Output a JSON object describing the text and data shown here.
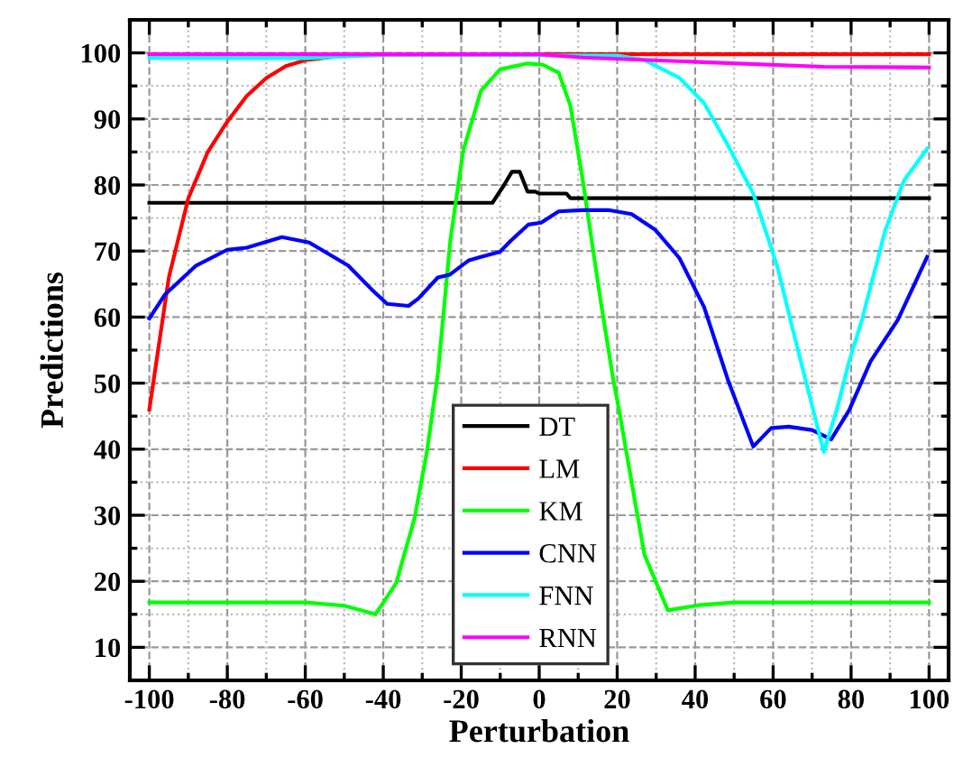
{
  "chart_data": {
    "type": "line",
    "xlabel": "Perturbation",
    "ylabel": "Predictions",
    "xlim": [
      -105,
      105
    ],
    "ylim": [
      5,
      105
    ],
    "xticks": [
      -100,
      -80,
      -60,
      -40,
      -20,
      0,
      20,
      40,
      60,
      80,
      100
    ],
    "yticks": [
      10,
      20,
      30,
      40,
      50,
      60,
      70,
      80,
      90,
      100
    ],
    "grid": true,
    "legend": "bottom",
    "marker": "none",
    "line_style": "solid",
    "series": [
      {
        "name": "DT",
        "color": "#000000",
        "x": [
          -100,
          -12,
          -9,
          -7,
          -5,
          -3,
          -1,
          0,
          7,
          8,
          100
        ],
        "values": [
          77.3,
          77.3,
          80,
          82,
          82,
          79,
          79,
          78.7,
          78.7,
          78,
          78
        ]
      },
      {
        "name": "LM",
        "color": "#ff0000",
        "x": [
          -100,
          -95,
          -90,
          -85,
          -80,
          -75,
          -70,
          -65,
          -60,
          -50,
          -40,
          100
        ],
        "values": [
          46,
          66,
          78,
          85,
          89.6,
          93.5,
          96.2,
          98,
          98.9,
          99.6,
          99.8,
          99.8
        ]
      },
      {
        "name": "KM",
        "color": "#00ff00",
        "x": [
          -100,
          -60,
          -50,
          -42,
          -36.7,
          -32,
          -28.8,
          -26,
          -22.8,
          -19.5,
          -14.9,
          -10,
          -3,
          1,
          5,
          8,
          11.2,
          15.8,
          19,
          20.5,
          23.7,
          27,
          33,
          41,
          50,
          100
        ],
        "values": [
          16.8,
          16.8,
          16.3,
          15,
          19.7,
          29.5,
          39.6,
          51.4,
          71.6,
          85.2,
          94.3,
          97.5,
          98.4,
          98.2,
          97,
          92,
          80.6,
          62.3,
          50.5,
          45.9,
          35,
          24,
          15.6,
          16.4,
          16.8,
          16.8
        ]
      },
      {
        "name": "CNN",
        "color": "#0000ff",
        "x": [
          -100,
          -96,
          -88,
          -80,
          -75,
          -66,
          -59,
          -49,
          -43,
          -39,
          -33.5,
          -31,
          -26,
          -23,
          -18,
          -15,
          -10,
          -7.4,
          -2.8,
          0.5,
          5,
          11,
          17.7,
          23.7,
          29.8,
          36,
          42.3,
          48.4,
          54.9,
          59.5,
          64,
          70,
          74.9,
          79.5,
          85,
          92,
          99.5
        ],
        "values": [
          59.8,
          63.4,
          67.8,
          70.2,
          70.5,
          72.1,
          71.3,
          67.8,
          64.2,
          62,
          61.7,
          62.8,
          66,
          66.4,
          68.6,
          69.1,
          69.9,
          71.5,
          74,
          74.3,
          76,
          76.2,
          76.2,
          75.6,
          73.2,
          68.9,
          61.5,
          50.5,
          40.4,
          43.2,
          43.4,
          42.9,
          41.5,
          45.9,
          53.3,
          59.6,
          69.1
        ]
      },
      {
        "name": "FNN",
        "color": "#00ffff",
        "x": [
          -100,
          -60,
          -40,
          20,
          27,
          36,
          42.3,
          48.4,
          54.9,
          61,
          65.6,
          73,
          76.3,
          79.5,
          82.8,
          88.8,
          93.5,
          99.5
        ],
        "values": [
          99.2,
          99.2,
          99.7,
          99.6,
          98.9,
          96.2,
          92.4,
          86,
          78.7,
          67.8,
          56.8,
          39.6,
          45.9,
          53.3,
          59.6,
          73.2,
          80.6,
          85.5
        ]
      },
      {
        "name": "RNN",
        "color": "#ff00ff",
        "x": [
          -100,
          0,
          11,
          42,
          73,
          100
        ],
        "values": [
          99.8,
          99.8,
          99.3,
          98.6,
          97.9,
          97.8
        ]
      }
    ]
  }
}
